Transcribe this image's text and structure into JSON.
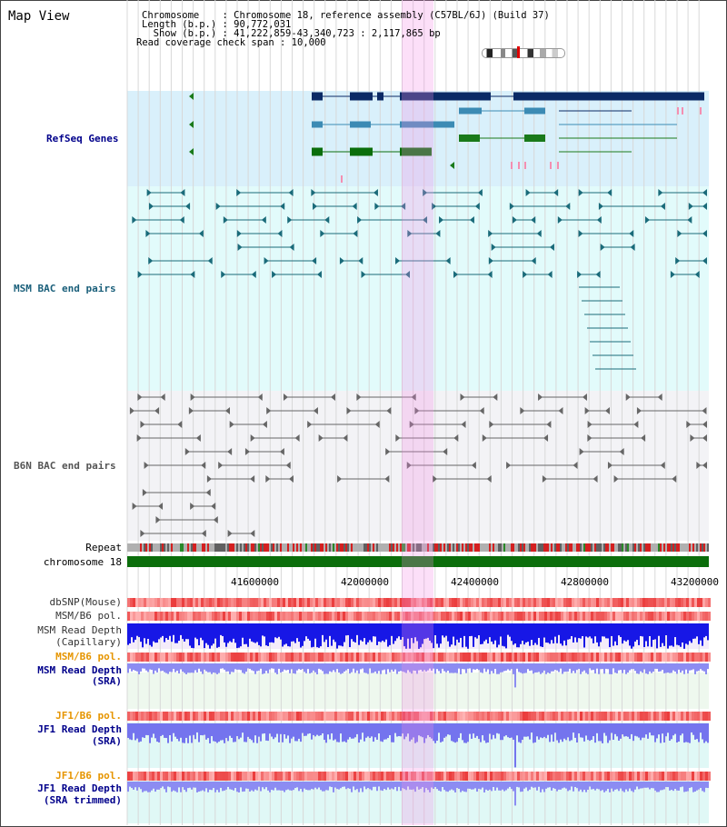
{
  "page": {
    "title": "Map View",
    "header": {
      "line1": "Chromosome    : Chromosome 18, reference assembly (C57BL/6J) (Build 37)",
      "line2": "Length (b.p.) : 90,772,031",
      "line3": "  Show (b.p.) : 41,222,859-43,340,723 : 2,117,865 bp",
      "line4": "Read coverage check span : 10,000"
    }
  },
  "tracks": {
    "refseq": "RefSeq Genes",
    "msm_bac": "MSM BAC end pairs",
    "b6n_bac": "B6N BAC end pairs",
    "repeat": "Repeat",
    "chromosome": "chromosome 18",
    "dbsnp": "dbSNP(Mouse)",
    "msm_b6_pol_1": "MSM/B6 pol.",
    "msm_read_depth_cap_1": "MSM Read Depth",
    "msm_read_depth_cap_2": "(Capillary)",
    "msm_b6_pol_2": "MSM/B6 pol.",
    "msm_read_depth_sra_1": "MSM Read Depth",
    "msm_read_depth_sra_2": "(SRA)",
    "jf1_b6_pol_1": "JF1/B6 pol.",
    "jf1_read_depth_sra_1": "JF1 Read Depth",
    "jf1_read_depth_sra_2": "(SRA)",
    "jf1_b6_pol_2": "JF1/B6 pol.",
    "jf1_read_depth_trim_1": "JF1 Read Depth",
    "jf1_read_depth_trim_2": "(SRA trimmed)"
  },
  "axis": {
    "ticks": [
      "41600000",
      "42000000",
      "42400000",
      "42800000",
      "43200000"
    ]
  },
  "colors": {
    "refseq_label": "#00008b",
    "msm_label": "#1a5f7a",
    "b6n_label": "#555555",
    "pol_label": "#e69500",
    "depth_label": "#00008b",
    "highlight": "#f6c9ef"
  }
}
